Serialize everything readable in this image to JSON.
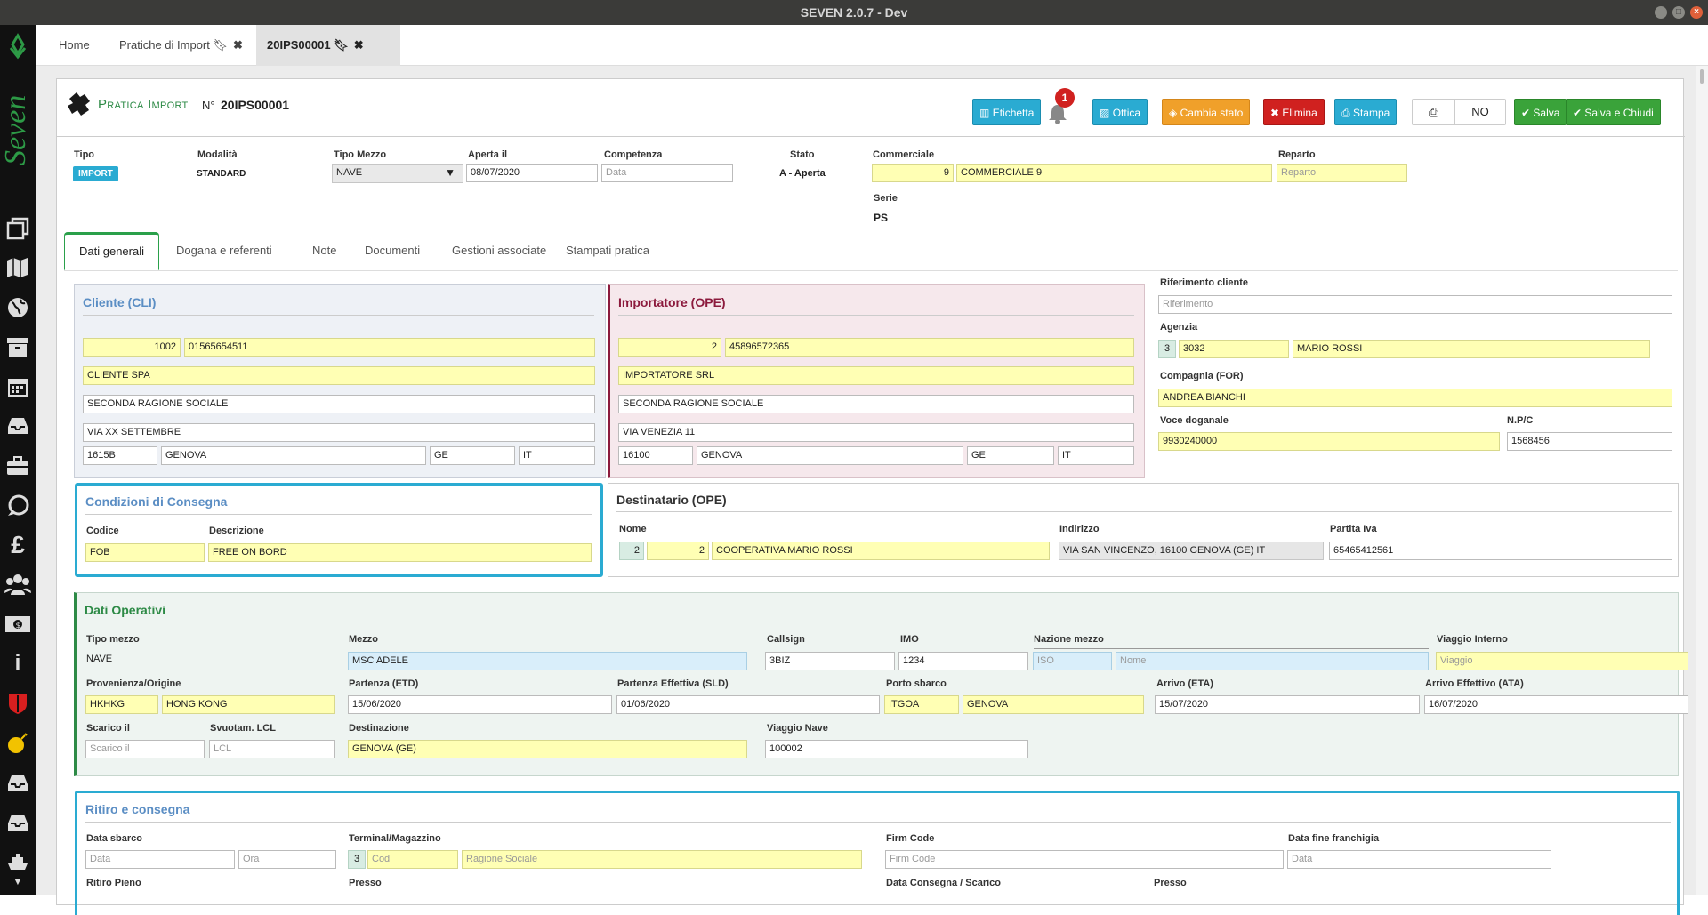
{
  "window": {
    "title": "SEVEN 2.0.7 -  Dev"
  },
  "tabs": [
    {
      "label": "Home"
    },
    {
      "label": "Pratiche di Import"
    },
    {
      "label": "20IPS00001"
    }
  ],
  "header": {
    "title": "Pratica Import",
    "num_prefix": "N°",
    "number": "20IPS00001"
  },
  "toolbar": {
    "etichetta": "Etichetta",
    "notif_count": "1",
    "ottica": "Ottica",
    "cambia_stato": "Cambia stato",
    "elimina": "Elimina",
    "stampa": "Stampa",
    "print_toggle": "NO",
    "salva": "Salva",
    "salva_chiudi": "Salva e Chiudi"
  },
  "summary": {
    "tipo_label": "Tipo",
    "tipo_badge": "IMPORT",
    "modalita_label": "Modalità",
    "modalita": "STANDARD",
    "tipo_mezzo_label": "Tipo Mezzo",
    "tipo_mezzo": "NAVE",
    "aperta_label": "Aperta il",
    "aperta": "08/07/2020",
    "competenza_label": "Competenza",
    "competenza_ph": "Data",
    "stato_label": "Stato",
    "stato": "A - Aperta",
    "commerciale_label": "Commerciale",
    "commerciale_code": "9",
    "commerciale_name": "COMMERCIALE 9",
    "reparto_label": "Reparto",
    "reparto_ph": "Reparto",
    "serie_label": "Serie",
    "serie": "PS"
  },
  "inner_tabs": [
    {
      "label": "Dati generali"
    },
    {
      "label": "Dogana e referenti"
    },
    {
      "label": "Note"
    },
    {
      "label": "Documenti"
    },
    {
      "label": "Gestioni associate"
    },
    {
      "label": "Stampati pratica"
    }
  ],
  "cliente": {
    "title": "Cliente (CLI)",
    "code": "1002",
    "piva": "01565654511",
    "name": "CLIENTE SPA",
    "name2": "SECONDA RAGIONE SOCIALE",
    "address": "VIA XX SETTEMBRE",
    "cap": "1615B",
    "city": "GENOVA",
    "prov": "GE",
    "country": "IT"
  },
  "importatore": {
    "title": "Importatore (OPE)",
    "code": "2",
    "piva": "45896572365",
    "name": "IMPORTATORE SRL",
    "name2": "SECONDA RAGIONE SOCIALE",
    "address": "VIA VENEZIA 11",
    "cap": "16100",
    "city": "GENOVA",
    "prov": "GE",
    "country": "IT"
  },
  "right": {
    "rif_label": "Riferimento cliente",
    "rif_ph": "Riferimento",
    "agenzia_label": "Agenzia",
    "agenzia_n": "3",
    "agenzia_code": "3032",
    "agenzia_name": "MARIO ROSSI",
    "compagnia_label": "Compagnia (FOR)",
    "compagnia": "ANDREA BIANCHI",
    "voce_label": "Voce doganale",
    "voce": "9930240000",
    "npc_label": "N.P/C",
    "npc": "1568456"
  },
  "condizioni": {
    "title": "Condizioni di Consegna",
    "codice_label": "Codice",
    "descr_label": "Descrizione",
    "codice": "FOB",
    "descr": "FREE ON BORD"
  },
  "destinatario": {
    "title": "Destinatario (OPE)",
    "nome_label": "Nome",
    "indirizzo_label": "Indirizzo",
    "piva_label": "Partita Iva",
    "n": "2",
    "code": "2",
    "name": "COOPERATIVA MARIO ROSSI",
    "address": "VIA SAN VINCENZO, 16100 GENOVA (GE) IT",
    "piva": "65465412561"
  },
  "operativi": {
    "title": "Dati Operativi",
    "tipo_mezzo_label": "Tipo mezzo",
    "tipo_mezzo": "NAVE",
    "mezzo_label": "Mezzo",
    "mezzo": "MSC ADELE",
    "callsign_label": "Callsign",
    "callsign": "3BIZ",
    "imo_label": "IMO",
    "imo": "1234",
    "nazione_label": "Nazione mezzo",
    "iso_ph": "ISO",
    "nome_ph": "Nome",
    "viaggio_int_label": "Viaggio Interno",
    "viaggio_ph": "Viaggio",
    "prov_label": "Provenienza/Origine",
    "prov_code": "HKHKG",
    "prov_name": "HONG KONG",
    "etd_label": "Partenza (ETD)",
    "etd": "15/06/2020",
    "sld_label": "Partenza Effettiva (SLD)",
    "sld": "01/06/2020",
    "porto_label": "Porto sbarco",
    "porto_code": "ITGOA",
    "porto_name": "GENOVA",
    "eta_label": "Arrivo (ETA)",
    "eta": "15/07/2020",
    "ata_label": "Arrivo Effettivo (ATA)",
    "ata": "16/07/2020",
    "scarico_label": "Scarico il",
    "scarico_ph": "Scarico il",
    "lcl_label": "Svuotam. LCL",
    "lcl_ph": "LCL",
    "dest_label": "Destinazione",
    "dest": "GENOVA (GE)",
    "viaggio_nave_label": "Viaggio Nave",
    "viaggio_nave": "100002"
  },
  "ritiro": {
    "title": "Ritiro e consegna",
    "data_sbarco_label": "Data sbarco",
    "data_ph": "Data",
    "ora_ph": "Ora",
    "terminal_label": "Terminal/Magazzino",
    "terminal_n": "3",
    "cod_ph": "Cod",
    "ragione_ph": "Ragione Sociale",
    "firm_label": "Firm Code",
    "firm_ph": "Firm Code",
    "fine_franchigia_label": "Data fine franchigia",
    "fine_ph": "Data",
    "ritiro_pieno_label": "Ritiro Pieno",
    "presso_label": "Presso",
    "consegna_label": "Data Consegna / Scarico",
    "presso2_label": "Presso"
  }
}
